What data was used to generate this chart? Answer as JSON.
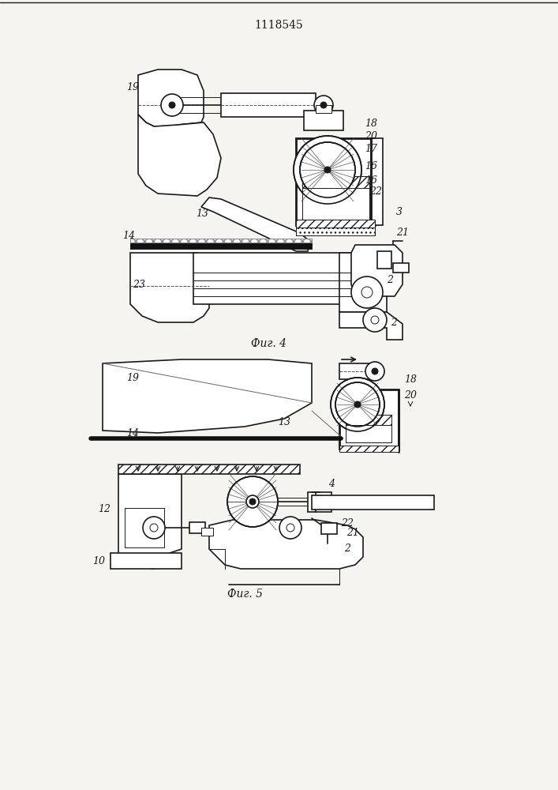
{
  "title": "1118545",
  "fig4_label": "Фиг. 4",
  "fig5_label": "Фиг. 5",
  "bg_color": "#f5f4f0",
  "line_color": "#1a1a1a",
  "fig_width": 7.07,
  "fig_height": 10.0,
  "dpi": 100
}
